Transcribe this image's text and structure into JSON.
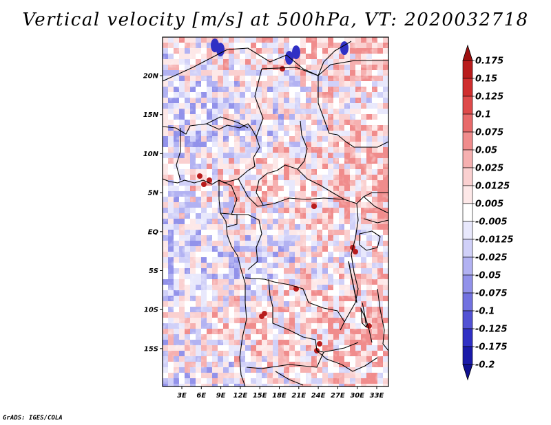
{
  "title": "Vertical velocity [m/s] at 500hPa, VT: 2020032718",
  "credit": "GrADS: IGES/COLA",
  "lat_labels": [
    "20N",
    "15N",
    "10N",
    "5N",
    "EQ",
    "5S",
    "10S",
    "15S"
  ],
  "lon_labels": [
    "3E",
    "6E",
    "9E",
    "12E",
    "15E",
    "18E",
    "21E",
    "24E",
    "27E",
    "30E",
    "33E"
  ],
  "colorbar": {
    "labels": [
      "0.175",
      "0.15",
      "0.125",
      "0.1",
      "0.075",
      "0.05",
      "0.025",
      "0.0125",
      "0.005",
      "-0.005",
      "-0.0125",
      "-0.025",
      "-0.05",
      "-0.075",
      "-0.1",
      "-0.125",
      "-0.175",
      "-0.2"
    ],
    "colors": [
      "#9e1010",
      "#b81c1c",
      "#cf2e2e",
      "#de4a4a",
      "#e86a6a",
      "#f08c8c",
      "#f6b0b0",
      "#fad0d0",
      "#fde8e8",
      "#ffffff",
      "#e8e8fc",
      "#d0d0f8",
      "#b2b2f2",
      "#9292ea",
      "#7272e0",
      "#5252d4",
      "#3030c4",
      "#1a1aa8",
      "#101090"
    ]
  }
}
